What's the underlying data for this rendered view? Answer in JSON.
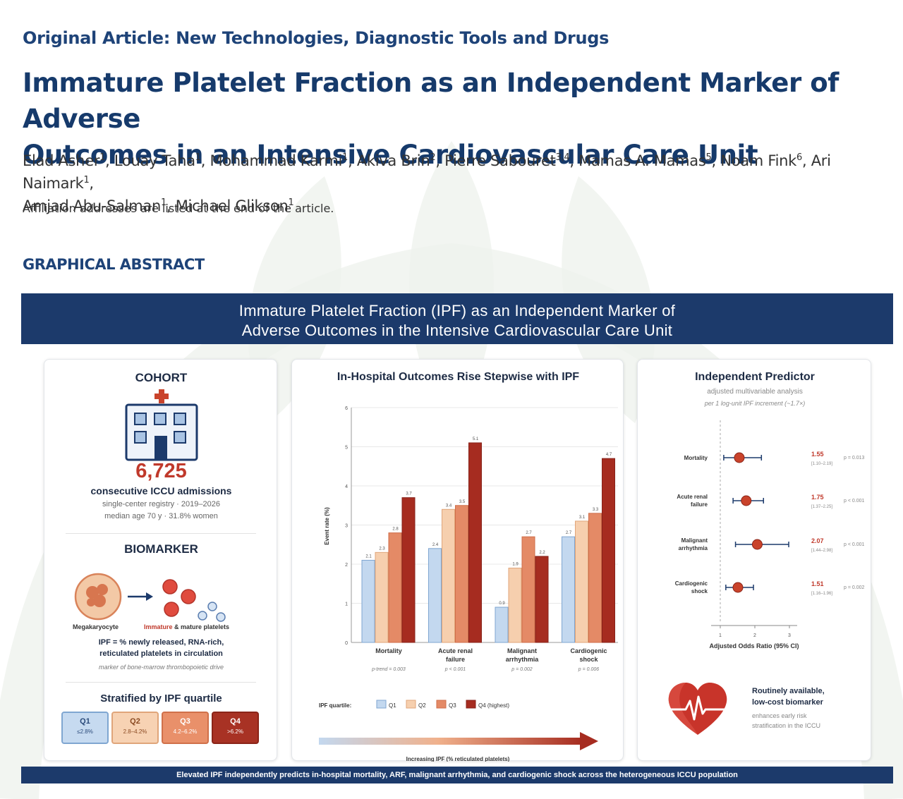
{
  "article_type": "Original Article: New Technologies, Diagnostic Tools and Drugs",
  "title_line1": "Immature Platelet Fraction as an Independent Marker of Adverse",
  "title_line2": "Outcomes in an Intensive Cardiovascular Care Unit",
  "authors": [
    {
      "name": "Elad Asher",
      "sup": "1"
    },
    {
      "name": "Louay Taha",
      "sup": "1"
    },
    {
      "name": "Mohammad Karmi",
      "sup": "1"
    },
    {
      "name": "Akiva Brin",
      "sup": "2"
    },
    {
      "name": "Pierre Sabouret",
      "sup": "3,4"
    },
    {
      "name": "Mamas A. Mamas",
      "sup": "5"
    },
    {
      "name": "Noam Fink",
      "sup": "6"
    },
    {
      "name": "Ari Naimark",
      "sup": "1"
    },
    {
      "name": "Amjad Abu-Salman",
      "sup": "1"
    },
    {
      "name": "Michael Glikson",
      "sup": "1"
    }
  ],
  "affiliation_note": "Affiliation addresses are listed at the end of the article.",
  "graphical_abstract_heading": "GRAPHICAL ABSTRACT",
  "banner": {
    "line1": "Immature Platelet Fraction (IPF) as an Independent Marker of",
    "line2": "Adverse Outcomes in the Intensive Cardiovascular Care Unit"
  },
  "cohort": {
    "heading": "COHORT",
    "count": "6,725",
    "count_label": "consecutive ICCU admissions",
    "detail1": "single-center registry · 2019–2026",
    "detail2": "median age 70 y · 31.8% women"
  },
  "biomarker": {
    "heading": "BIOMARKER",
    "mega_label": "Megakaryocyte",
    "platelet_label_immature": "Immature",
    "platelet_label_rest": " & mature platelets",
    "def_line1": "IPF = % newly released, RNA-rich,",
    "def_line2": "reticulated platelets in circulation",
    "def_note": "marker of bone-marrow thrombopoietic drive"
  },
  "stratification": {
    "heading": "Stratified by IPF quartile",
    "quartiles": [
      {
        "label": "Q1",
        "range": "≤2.8%",
        "color": "#c6daf0",
        "border": "#7fa6d1",
        "text": "#2a4a7a"
      },
      {
        "label": "Q2",
        "range": "2.8–4.2%",
        "color": "#f7d2b3",
        "border": "#e0a57a",
        "text": "#8a4a22"
      },
      {
        "label": "Q3",
        "range": "4.2–6.2%",
        "color": "#e9906a",
        "border": "#d0704a",
        "text": "#ffffff"
      },
      {
        "label": "Q4",
        "range": ">6.2%",
        "color": "#a83224",
        "border": "#8a2418",
        "text": "#ffffff"
      }
    ]
  },
  "chart_data": {
    "type": "bar",
    "title": "In-Hospital Outcomes Rise Stepwise with IPF",
    "ylabel": "Event rate (%)",
    "ylim": [
      0,
      6
    ],
    "yticks": [
      0,
      1,
      2,
      3,
      4,
      5,
      6
    ],
    "categories": [
      {
        "line1": "Mortality",
        "line2": "",
        "p": "p-trend = 0.003"
      },
      {
        "line1": "Acute renal",
        "line2": "failure",
        "p": "p < 0.001"
      },
      {
        "line1": "Malignant",
        "line2": "arrhythmia",
        "p": "p = 0.002"
      },
      {
        "line1": "Cardiogenic",
        "line2": "shock",
        "p": "p = 0.006"
      }
    ],
    "series": [
      {
        "name": "Q1",
        "values": [
          2.1,
          2.4,
          0.9,
          2.7
        ],
        "fill": "#c3d8ef",
        "stroke": "#7fa6d1"
      },
      {
        "name": "Q2",
        "values": [
          2.3,
          3.4,
          1.9,
          3.1
        ],
        "fill": "#f6cfae",
        "stroke": "#e0a57a"
      },
      {
        "name": "Q3",
        "values": [
          2.8,
          3.5,
          2.7,
          3.3
        ],
        "fill": "#e48a66",
        "stroke": "#cf6e4a"
      },
      {
        "name": "Q4 (highest)",
        "values": [
          3.7,
          5.1,
          2.2,
          4.7
        ],
        "fill": "#a62c20",
        "stroke": "#87221a"
      }
    ],
    "legend_title": "IPF quartile:",
    "arrow_label": "Increasing IPF (% reticulated platelets)"
  },
  "predictor": {
    "heading": "Independent Predictor",
    "sub1": "adjusted multivariable analysis",
    "sub2": "per 1 log-unit IPF increment (~1.7×)",
    "xlabel": "Adjusted Odds Ratio (95% CI)",
    "xticks": [
      1,
      2,
      3
    ],
    "rows": [
      {
        "label1": "Mortality",
        "label2": "",
        "or": 1.55,
        "lo": 1.1,
        "hi": 2.19,
        "or_text": "1.55",
        "ci_text": "[1.10–2.19]",
        "p": "p = 0.013"
      },
      {
        "label1": "Acute renal",
        "label2": "failure",
        "or": 1.75,
        "lo": 1.37,
        "hi": 2.25,
        "or_text": "1.75",
        "ci_text": "[1.37–2.25]",
        "p": "p < 0.001"
      },
      {
        "label1": "Malignant",
        "label2": "arrhythmia",
        "or": 2.07,
        "lo": 1.44,
        "hi": 2.98,
        "or_text": "2.07",
        "ci_text": "[1.44–2.98]",
        "p": "p < 0.001"
      },
      {
        "label1": "Cardiogenic",
        "label2": "shock",
        "or": 1.51,
        "lo": 1.16,
        "hi": 1.96,
        "or_text": "1.51",
        "ci_text": "[1.16–1.96]",
        "p": "p = 0.002"
      }
    ],
    "callout1": "Routinely available,",
    "callout2": "low-cost biomarker",
    "callout3": "enhances early risk",
    "callout4": "stratification in the ICCU"
  },
  "footer": "Elevated IPF independently predicts in-hospital mortality, ARF, malignant arrhythmia, and cardiogenic shock across the heterogeneous ICCU population",
  "colors": {
    "navy": "#1c3a6b",
    "accent_red": "#c0392b",
    "marker": "#c9432b"
  }
}
